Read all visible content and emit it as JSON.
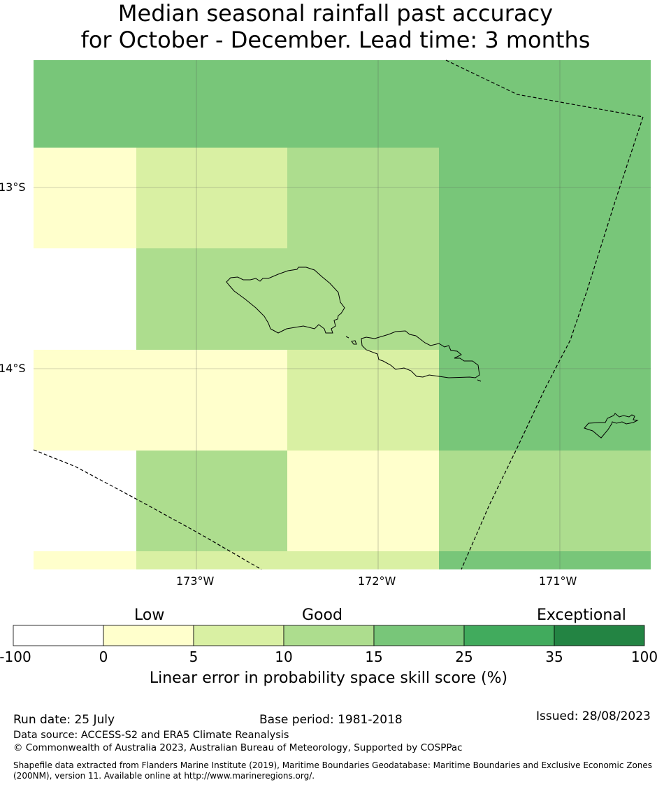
{
  "title": {
    "line1": "Median seasonal rainfall past accuracy",
    "line2": "for October - December. Lead time: 3 months"
  },
  "map": {
    "lat_labels": [
      "13°S",
      "14°S"
    ],
    "lon_labels": [
      "173°W",
      "172°W",
      "171°W"
    ],
    "colors": {
      "white": "#ffffff",
      "pale_yellow": "#ffffcc",
      "yellow_green": "#d9f0a3",
      "light_green": "#addd8e",
      "green": "#78c679",
      "mid_green": "#41ab5d",
      "dark_green": "#238443"
    },
    "cell_grid": [
      [
        "green",
        "green",
        "green",
        "green",
        "green",
        "green"
      ],
      [
        "pale_yellow",
        "yellow_green",
        "light_green",
        "green",
        "green",
        "mid_green"
      ],
      [
        "white",
        "light_green",
        "light_green",
        "green",
        "green",
        "green"
      ],
      [
        "pale_yellow",
        "pale_yellow",
        "yellow_green",
        "green",
        "green",
        "mid_green"
      ],
      [
        "white",
        "light_green",
        "pale_yellow",
        "light_green",
        "light_green",
        "green"
      ],
      [
        "pale_yellow",
        "yellow_green",
        "yellow_green",
        "green",
        "green",
        "green"
      ]
    ]
  },
  "colorbar": {
    "categories": [
      "Low",
      "Good",
      "Exceptional"
    ],
    "ticks": [
      "-100",
      "0",
      "5",
      "10",
      "15",
      "25",
      "35",
      "100"
    ],
    "colors": [
      "#ffffff",
      "#ffffcc",
      "#d9f0a3",
      "#addd8e",
      "#78c679",
      "#41ab5d",
      "#238443"
    ],
    "label": "Linear error in probability space skill score (%)"
  },
  "footer": {
    "run_date": "Run date: 25 July",
    "base_period": "Base period: 1981-2018",
    "issued": "Issued: 28/08/2023",
    "data_source": "Data source: ACCESS-S2 and ERA5 Climate Reanalysis",
    "copyright": "© Commonwealth of Australia 2023, Australian Bureau of Meteorology, Supported by COSPPac",
    "shapefile_line1": "Shapefile data extracted from Flanders Marine Institute (2019), Maritime Boundaries Geodatabase: Maritime Boundaries and Exclusive Economic Zones",
    "shapefile_line2": "(200NM), version 11. Available online at http://www.marineregions.org/."
  }
}
